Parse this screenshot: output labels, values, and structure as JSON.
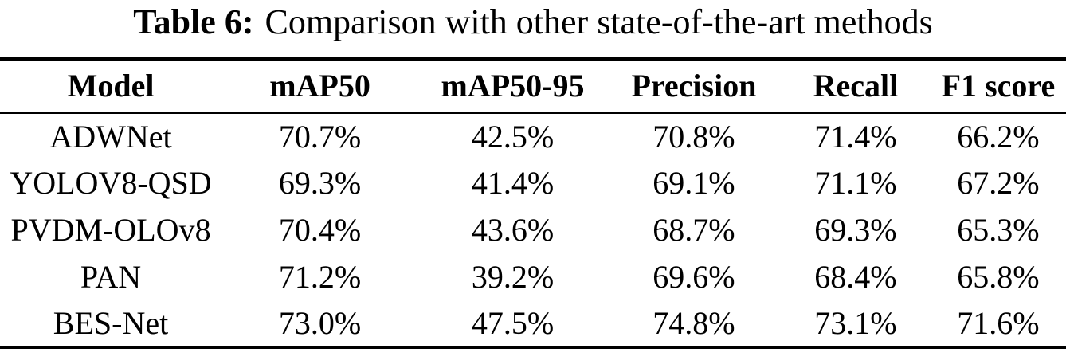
{
  "caption": {
    "label": "Table 6:",
    "text": "Comparison with other state-of-the-art methods"
  },
  "table": {
    "columns": [
      "Model",
      "mAP50",
      "mAP50-95",
      "Precision",
      "Recall",
      "F1 score"
    ],
    "rows": [
      [
        "ADWNet",
        "70.7%",
        "42.5%",
        "70.8%",
        "71.4%",
        "66.2%"
      ],
      [
        "YOLOV8-QSD",
        "69.3%",
        "41.4%",
        "69.1%",
        "71.1%",
        "67.2%"
      ],
      [
        "PVDM-OLOv8",
        "70.4%",
        "43.6%",
        "68.7%",
        "69.3%",
        "65.3%"
      ],
      [
        "PAN",
        "71.2%",
        "39.2%",
        "69.6%",
        "68.4%",
        "65.8%"
      ],
      [
        "BES-Net",
        "73.0%",
        "47.5%",
        "74.8%",
        "73.1%",
        "71.6%"
      ]
    ]
  },
  "colors": {
    "text": "#000000",
    "background": "#ffffff",
    "rule": "#000000"
  }
}
